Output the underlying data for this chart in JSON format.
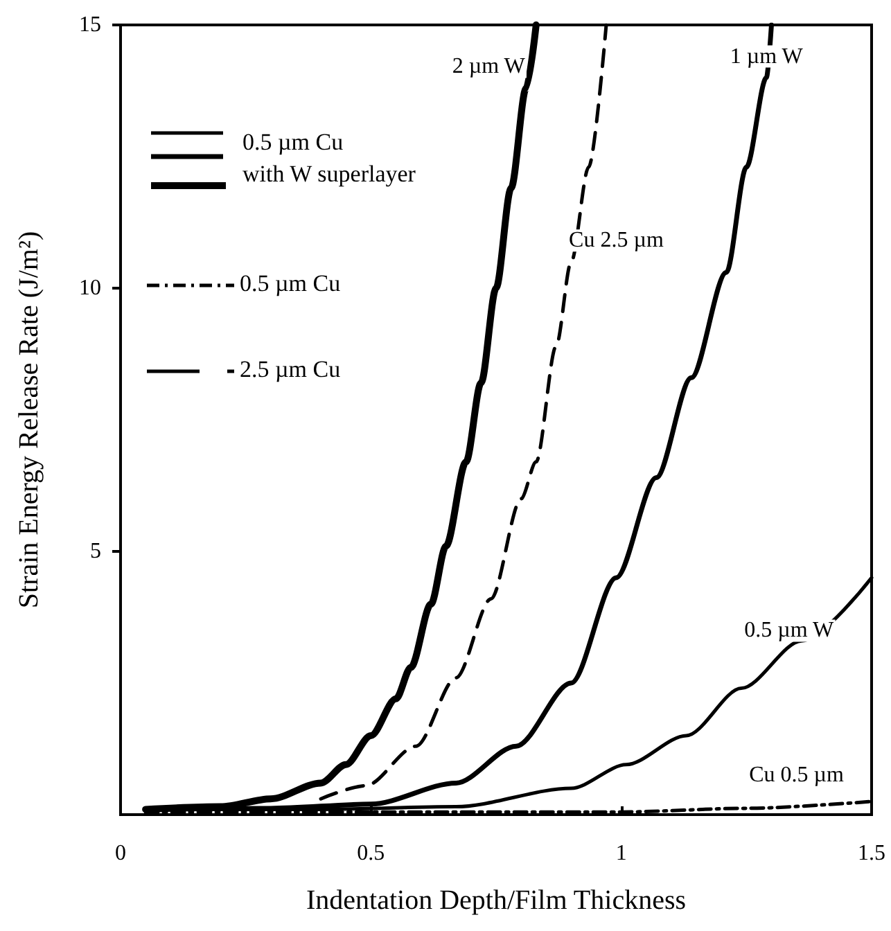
{
  "chart_data": {
    "type": "line",
    "xlabel": "Indentation Depth/Film Thickness",
    "ylabel": "Strain Energy Release Rate (J/m²)",
    "xlim": [
      0,
      1.5
    ],
    "xticks": [
      0,
      0.5,
      1,
      1.5
    ],
    "ylim": [
      0,
      15
    ],
    "yticks": [
      5,
      10,
      15
    ],
    "grid": false,
    "marker": "none",
    "series": [
      {
        "name": "2 µm W",
        "color": "#000000",
        "line_style": "solid",
        "x": [
          0.05,
          0.2,
          0.3,
          0.4,
          0.45,
          0.5,
          0.55,
          0.58,
          0.62,
          0.65,
          0.69,
          0.72,
          0.75,
          0.78,
          0.81,
          0.83
        ],
        "values": [
          0.1,
          0.15,
          0.3,
          0.6,
          0.95,
          1.5,
          2.2,
          2.8,
          4,
          5.1,
          6.7,
          8.2,
          10,
          11.9,
          13.8,
          15
        ]
      },
      {
        "name": "1 µm W",
        "color": "#000000",
        "line_style": "solid",
        "x": [
          0.05,
          0.3,
          0.5,
          0.67,
          0.79,
          0.9,
          0.99,
          1.07,
          1.14,
          1.21,
          1.25,
          1.29,
          1.3
        ],
        "values": [
          0.1,
          0.12,
          0.2,
          0.6,
          1.3,
          2.5,
          4.5,
          6.4,
          8.3,
          10.3,
          12.3,
          14,
          15
        ]
      },
      {
        "name": "0.5 µm W",
        "color": "#000000",
        "line_style": "solid",
        "x": [
          0.05,
          0.4,
          0.67,
          0.9,
          1.01,
          1.13,
          1.24,
          1.36,
          1.5
        ],
        "values": [
          0.1,
          0.1,
          0.15,
          0.5,
          0.95,
          1.5,
          2.4,
          3.3,
          4.5
        ]
      },
      {
        "name": "Cu 2.5 µm",
        "color": "#000000",
        "line_style": "dashed",
        "x": [
          0.4,
          0.49,
          0.59,
          0.67,
          0.74,
          0.8,
          0.83,
          0.87,
          0.9,
          0.935,
          0.97
        ],
        "values": [
          0.3,
          0.55,
          1.3,
          2.6,
          4.1,
          6,
          6.7,
          8.9,
          10.5,
          12.3,
          15
        ]
      },
      {
        "name": "Cu 0.5 µm",
        "color": "#000000",
        "line_style": "dashdot",
        "x": [
          0.05,
          0.5,
          1,
          1.25,
          1.5
        ],
        "values": [
          0.05,
          0.05,
          0.05,
          0.12,
          0.25
        ]
      }
    ],
    "annotations": [
      "0.5 µm Cu",
      "with W superlayer",
      "0.5 µm Cu",
      "2.5 µm Cu"
    ]
  }
}
